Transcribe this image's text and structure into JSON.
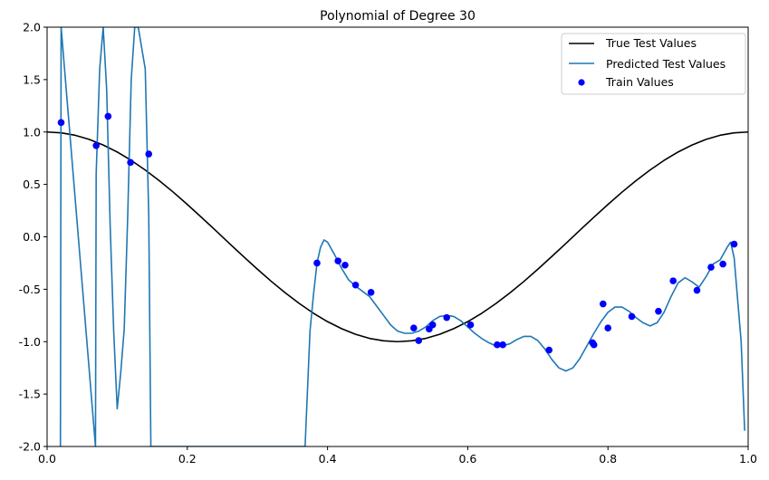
{
  "chart_data": {
    "type": "line",
    "title": "Polynomial of Degree 30",
    "xlabel": "",
    "ylabel": "",
    "xlim": [
      0.0,
      1.0
    ],
    "ylim": [
      -2.0,
      2.0
    ],
    "grid": false,
    "legend_position": "top-right",
    "x_ticks": [
      "0.0",
      "0.2",
      "0.4",
      "0.6",
      "0.8",
      "1.0"
    ],
    "y_ticks": [
      "-2.0",
      "-1.5",
      "-1.0",
      "-0.5",
      "0.0",
      "0.5",
      "1.0",
      "1.5",
      "2.0"
    ],
    "colors": {
      "true": "#000000",
      "predicted": "#1f77b4",
      "train": "#0000ff"
    },
    "series": [
      {
        "name": "True Test Values",
        "kind": "line",
        "color": "#000000",
        "x": [
          0.0,
          0.02,
          0.04,
          0.06,
          0.08,
          0.1,
          0.12,
          0.14,
          0.16,
          0.18,
          0.2,
          0.22,
          0.24,
          0.26,
          0.28,
          0.3,
          0.32,
          0.34,
          0.36,
          0.38,
          0.4,
          0.42,
          0.44,
          0.46,
          0.48,
          0.5,
          0.52,
          0.54,
          0.56,
          0.58,
          0.6,
          0.62,
          0.64,
          0.66,
          0.68,
          0.7,
          0.72,
          0.74,
          0.76,
          0.78,
          0.8,
          0.82,
          0.84,
          0.86,
          0.88,
          0.9,
          0.92,
          0.94,
          0.96,
          0.98,
          1.0
        ],
        "y": [
          1.0,
          0.992,
          0.969,
          0.93,
          0.876,
          0.809,
          0.729,
          0.637,
          0.536,
          0.426,
          0.309,
          0.187,
          0.063,
          -0.063,
          -0.187,
          -0.309,
          -0.426,
          -0.536,
          -0.637,
          -0.729,
          -0.809,
          -0.876,
          -0.93,
          -0.969,
          -0.992,
          -1.0,
          -0.992,
          -0.969,
          -0.93,
          -0.876,
          -0.809,
          -0.729,
          -0.637,
          -0.536,
          -0.426,
          -0.309,
          -0.187,
          -0.063,
          0.063,
          0.187,
          0.309,
          0.426,
          0.536,
          0.637,
          0.729,
          0.809,
          0.876,
          0.93,
          0.969,
          0.992,
          1.0
        ]
      },
      {
        "name": "Predicted Test Values",
        "kind": "line",
        "color": "#1f77b4",
        "x": [
          0.019,
          0.02,
          0.069,
          0.07,
          0.075,
          0.08,
          0.085,
          0.09,
          0.095,
          0.1,
          0.105,
          0.11,
          0.115,
          0.12,
          0.125,
          0.13,
          0.14,
          0.145,
          0.148,
          0.368,
          0.375,
          0.38,
          0.385,
          0.39,
          0.395,
          0.4,
          0.41,
          0.42,
          0.43,
          0.44,
          0.45,
          0.46,
          0.47,
          0.48,
          0.49,
          0.5,
          0.51,
          0.52,
          0.53,
          0.54,
          0.55,
          0.56,
          0.57,
          0.58,
          0.59,
          0.6,
          0.61,
          0.62,
          0.63,
          0.64,
          0.65,
          0.66,
          0.67,
          0.68,
          0.69,
          0.7,
          0.71,
          0.72,
          0.73,
          0.74,
          0.75,
          0.76,
          0.77,
          0.78,
          0.79,
          0.8,
          0.81,
          0.82,
          0.83,
          0.84,
          0.85,
          0.86,
          0.87,
          0.88,
          0.89,
          0.9,
          0.91,
          0.92,
          0.93,
          0.94,
          0.95,
          0.96,
          0.97,
          0.975,
          0.98,
          0.99,
          0.995
        ],
        "y": [
          -2.0,
          2.0,
          -2.0,
          0.6,
          1.6,
          2.0,
          1.4,
          0.1,
          -0.9,
          -1.64,
          -1.3,
          -0.88,
          0.2,
          1.5,
          2.0,
          2.0,
          1.6,
          0.2,
          -2.0,
          -2.0,
          -0.9,
          -0.55,
          -0.25,
          -0.1,
          -0.03,
          -0.05,
          -0.17,
          -0.3,
          -0.41,
          -0.47,
          -0.52,
          -0.57,
          -0.66,
          -0.75,
          -0.84,
          -0.9,
          -0.92,
          -0.92,
          -0.9,
          -0.86,
          -0.8,
          -0.76,
          -0.75,
          -0.76,
          -0.8,
          -0.86,
          -0.92,
          -0.97,
          -1.01,
          -1.04,
          -1.04,
          -1.02,
          -0.98,
          -0.95,
          -0.95,
          -0.99,
          -1.07,
          -1.17,
          -1.25,
          -1.28,
          -1.25,
          -1.16,
          -1.04,
          -0.92,
          -0.81,
          -0.72,
          -0.67,
          -0.67,
          -0.71,
          -0.77,
          -0.82,
          -0.85,
          -0.82,
          -0.72,
          -0.57,
          -0.44,
          -0.39,
          -0.43,
          -0.48,
          -0.38,
          -0.26,
          -0.22,
          -0.1,
          -0.05,
          -0.2,
          -1.0,
          -1.85
        ]
      },
      {
        "name": "Train Values",
        "kind": "scatter",
        "color": "#0000ff",
        "x": [
          0.02,
          0.07,
          0.087,
          0.119,
          0.145,
          0.385,
          0.415,
          0.425,
          0.44,
          0.462,
          0.523,
          0.53,
          0.545,
          0.55,
          0.57,
          0.604,
          0.642,
          0.65,
          0.716,
          0.778,
          0.78,
          0.793,
          0.8,
          0.834,
          0.872,
          0.893,
          0.927,
          0.947,
          0.964,
          0.98
        ],
        "y": [
          1.09,
          0.87,
          1.15,
          0.71,
          0.79,
          -0.25,
          -0.23,
          -0.27,
          -0.46,
          -0.53,
          -0.87,
          -0.99,
          -0.88,
          -0.84,
          -0.77,
          -0.84,
          -1.03,
          -1.03,
          -1.08,
          -1.01,
          -1.03,
          -0.64,
          -0.87,
          -0.76,
          -0.71,
          -0.42,
          -0.51,
          -0.29,
          -0.26,
          -0.07
        ]
      }
    ]
  }
}
